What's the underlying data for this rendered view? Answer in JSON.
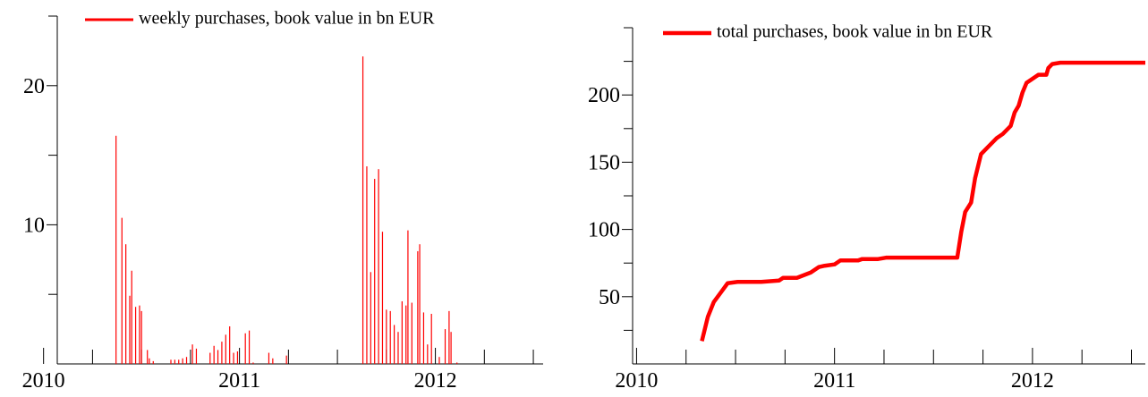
{
  "chart_data": [
    {
      "type": "bar",
      "series": [
        {
          "name": "weekly purchases, book value in bn EUR",
          "color": "#ff0000",
          "x": [
            2010.37,
            2010.4,
            2010.42,
            2010.44,
            2010.45,
            2010.47,
            2010.49,
            2010.5,
            2010.53,
            2010.54,
            2010.56,
            2010.65,
            2010.67,
            2010.69,
            2010.71,
            2010.73,
            2010.76,
            2010.78,
            2010.85,
            2010.87,
            2010.89,
            2010.91,
            2010.93,
            2010.95,
            2010.97,
            2010.99,
            2011.03,
            2011.05,
            2011.07,
            2011.15,
            2011.17,
            2011.24,
            2011.63,
            2011.65,
            2011.67,
            2011.69,
            2011.71,
            2011.73,
            2011.75,
            2011.77,
            2011.79,
            2011.81,
            2011.83,
            2011.85,
            2011.86,
            2011.88,
            2011.91,
            2011.92,
            2011.94,
            2011.96,
            2011.98,
            2012.02,
            2012.05,
            2012.07,
            2012.08,
            2012.11
          ],
          "values": [
            16.4,
            10.5,
            8.6,
            4.9,
            6.7,
            4.1,
            4.2,
            3.8,
            1.0,
            0.4,
            0.2,
            0.3,
            0.3,
            0.3,
            0.4,
            0.5,
            1.4,
            1.1,
            0.8,
            1.3,
            1.0,
            1.6,
            2.1,
            2.7,
            0.8,
            0.9,
            2.2,
            2.4,
            0.1,
            0.8,
            0.4,
            0.6,
            22.1,
            14.2,
            6.6,
            13.3,
            14.0,
            9.5,
            3.9,
            3.8,
            2.8,
            2.3,
            4.5,
            4.2,
            9.6,
            4.4,
            8.1,
            8.6,
            3.7,
            1.4,
            3.6,
            0.5,
            2.5,
            3.8,
            2.3,
            0.1
          ]
        }
      ],
      "xlim": [
        2010.07,
        2012.55
      ],
      "xticks": [
        2010,
        2011,
        2012
      ],
      "minor_xticks": [
        2010.25,
        2010.5,
        2010.75,
        2011.25,
        2011.5,
        2011.75,
        2012.25,
        2012.5
      ],
      "ylim": [
        0,
        25
      ],
      "yticks": [
        10,
        20
      ],
      "minor_yticks": [
        5,
        15,
        25
      ]
    },
    {
      "type": "line",
      "series": [
        {
          "name": "total purchases, book value in bn EUR",
          "color": "#ff0000",
          "x": [
            2010.33,
            2010.36,
            2010.39,
            2010.43,
            2010.46,
            2010.51,
            2010.63,
            2010.72,
            2010.74,
            2010.81,
            2010.88,
            2010.92,
            2010.95,
            2011.0,
            2011.03,
            2011.12,
            2011.14,
            2011.22,
            2011.26,
            2011.62,
            2011.64,
            2011.66,
            2011.69,
            2011.71,
            2011.74,
            2011.78,
            2011.82,
            2011.85,
            2011.89,
            2011.91,
            2011.93,
            2011.95,
            2011.97,
            2012.0,
            2012.01,
            2012.03,
            2012.07,
            2012.08,
            2012.1,
            2012.14,
            2012.57
          ],
          "values": [
            17,
            35,
            46,
            54,
            60,
            61,
            61,
            62,
            64,
            64,
            68,
            72,
            73,
            74,
            77,
            77,
            78,
            78,
            79,
            79,
            98,
            113,
            120,
            138,
            156,
            162,
            168,
            171,
            177,
            187,
            192,
            202,
            209,
            212,
            213,
            215,
            215,
            220,
            223,
            224,
            224
          ]
        }
      ],
      "xlim": [
        2009.98,
        2012.57
      ],
      "xticks": [
        2010,
        2011,
        2012
      ],
      "minor_xticks": [
        2010.25,
        2010.5,
        2010.75,
        2011.25,
        2011.5,
        2011.75,
        2012.25,
        2012.5
      ],
      "ylim": [
        0,
        250
      ],
      "yticks": [
        50,
        100,
        150,
        200
      ],
      "minor_yticks": [
        25,
        75,
        125,
        175,
        225,
        250
      ]
    }
  ]
}
